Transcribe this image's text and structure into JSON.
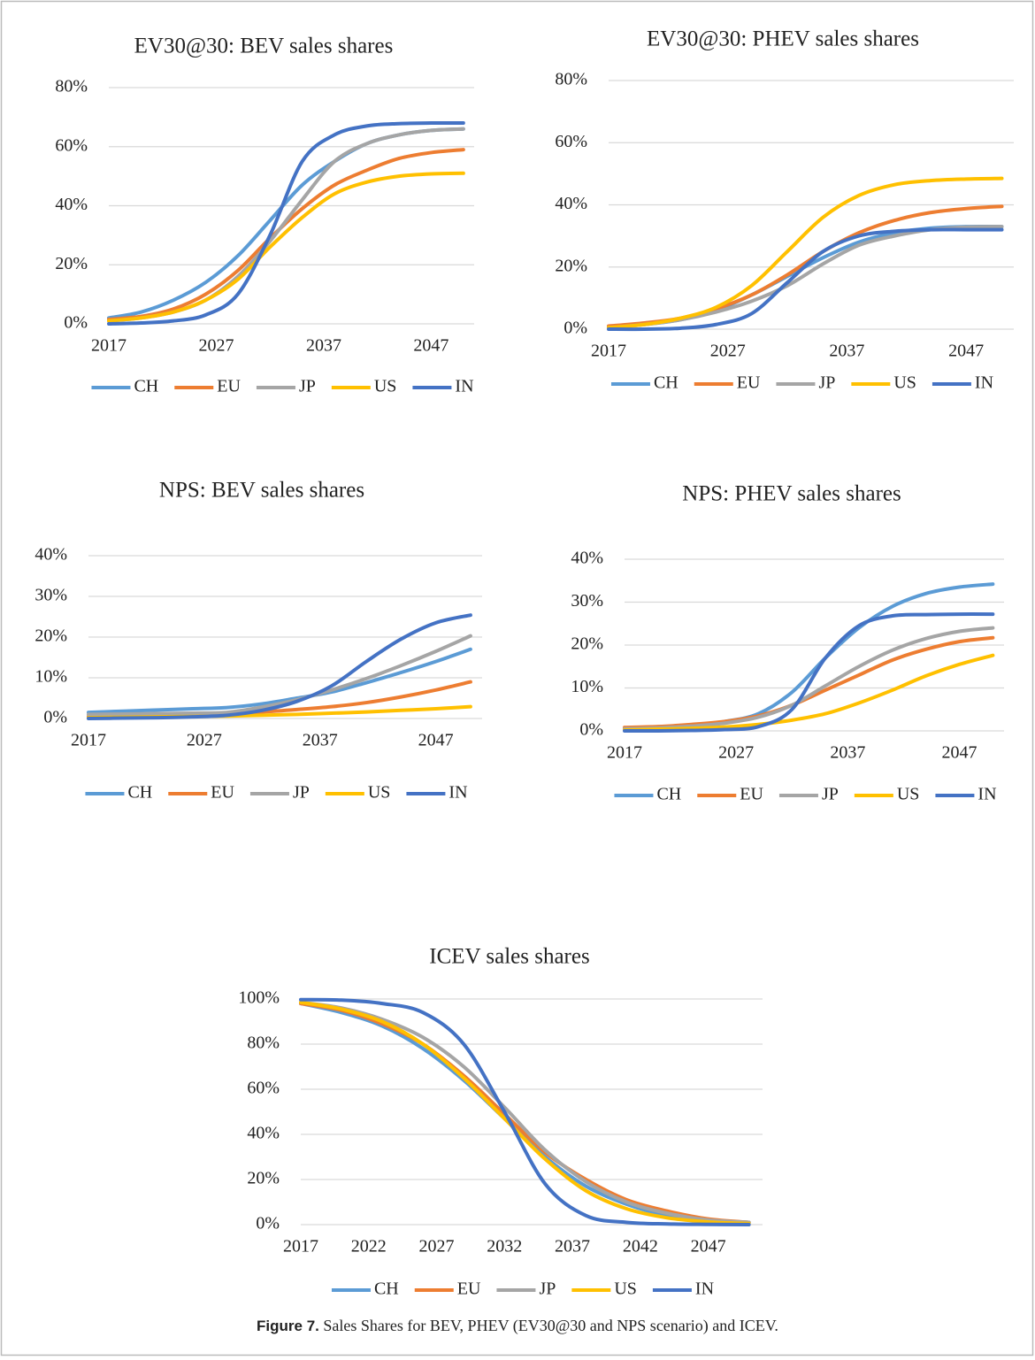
{
  "chart_data": [
    {
      "type": "line",
      "title": "EV30@30: BEV sales shares",
      "x": [
        2017,
        2020,
        2023,
        2026,
        2029,
        2032,
        2035,
        2038,
        2041,
        2044,
        2047,
        2050
      ],
      "xlim": [
        2017,
        2051
      ],
      "xticks": [
        2017,
        2027,
        2037,
        2047
      ],
      "ylim": [
        0,
        80
      ],
      "yticks": [
        {
          "value": 0,
          "label": "0%"
        },
        {
          "value": 20,
          "label": "20%"
        },
        {
          "value": 40,
          "label": "40%"
        },
        {
          "value": 60,
          "label": "60%"
        },
        {
          "value": 80,
          "label": "80%"
        }
      ],
      "grid": true,
      "legend": "bottom",
      "series": [
        {
          "name": "CH",
          "color": "#5b9bd5",
          "values": [
            2,
            4,
            8,
            14,
            23,
            35,
            47,
            55,
            61,
            64,
            65.5,
            66
          ]
        },
        {
          "name": "EU",
          "color": "#ed7d31",
          "values": [
            1.5,
            2.5,
            5,
            10,
            18,
            29,
            39,
            47,
            52,
            56,
            58,
            59
          ]
        },
        {
          "name": "JP",
          "color": "#a5a5a5",
          "values": [
            1,
            2,
            4,
            8,
            16,
            28,
            42,
            55,
            61,
            64,
            65.5,
            66
          ]
        },
        {
          "name": "US",
          "color": "#ffc000",
          "values": [
            1,
            2,
            4,
            8,
            15,
            26,
            36,
            44,
            48,
            50,
            50.8,
            51
          ]
        },
        {
          "name": "IN",
          "color": "#4472c4",
          "values": [
            0,
            0.3,
            1,
            3,
            10,
            30,
            55,
            64,
            67,
            67.8,
            68,
            68
          ]
        }
      ]
    },
    {
      "type": "line",
      "title": "EV30@30: PHEV sales shares",
      "x": [
        2017,
        2020,
        2023,
        2026,
        2029,
        2032,
        2035,
        2038,
        2041,
        2044,
        2047,
        2050
      ],
      "xlim": [
        2017,
        2051
      ],
      "xticks": [
        2017,
        2027,
        2037,
        2047
      ],
      "ylim": [
        0,
        80
      ],
      "yticks": [
        {
          "value": 0,
          "label": "0%"
        },
        {
          "value": 20,
          "label": "20%"
        },
        {
          "value": 40,
          "label": "40%"
        },
        {
          "value": 60,
          "label": "60%"
        },
        {
          "value": 80,
          "label": "80%"
        }
      ],
      "grid": true,
      "legend": "bottom",
      "series": [
        {
          "name": "CH",
          "color": "#5b9bd5",
          "values": [
            0.5,
            1.5,
            3,
            6,
            11,
            17,
            23,
            28,
            31,
            32.5,
            33,
            33
          ]
        },
        {
          "name": "EU",
          "color": "#ed7d31",
          "values": [
            1,
            2,
            3.5,
            6.5,
            11,
            17.5,
            25,
            31,
            35,
            37.5,
            38.8,
            39.5
          ]
        },
        {
          "name": "JP",
          "color": "#a5a5a5",
          "values": [
            0.5,
            1.5,
            3,
            5.5,
            9,
            14,
            21,
            27,
            30,
            32,
            32.8,
            33
          ]
        },
        {
          "name": "US",
          "color": "#ffc000",
          "values": [
            0.5,
            1.5,
            3.5,
            7,
            14,
            25,
            36,
            43,
            46.5,
            47.8,
            48.3,
            48.5
          ]
        },
        {
          "name": "IN",
          "color": "#4472c4",
          "values": [
            0,
            0,
            0.3,
            1.5,
            5,
            15,
            25,
            30,
            31.5,
            32,
            32,
            32
          ]
        }
      ]
    },
    {
      "type": "line",
      "title": "NPS: BEV sales shares",
      "x": [
        2017,
        2020,
        2023,
        2026,
        2029,
        2032,
        2035,
        2038,
        2041,
        2044,
        2047,
        2050
      ],
      "xlim": [
        2017,
        2051
      ],
      "xticks": [
        2017,
        2027,
        2037,
        2047
      ],
      "ylim": [
        0,
        40
      ],
      "yticks": [
        {
          "value": 0,
          "label": "0%"
        },
        {
          "value": 10,
          "label": "10%"
        },
        {
          "value": 20,
          "label": "20%"
        },
        {
          "value": 30,
          "label": "30%"
        },
        {
          "value": 40,
          "label": "40%"
        }
      ],
      "grid": true,
      "legend": "bottom",
      "series": [
        {
          "name": "CH",
          "color": "#5b9bd5",
          "values": [
            1.5,
            1.8,
            2.1,
            2.4,
            2.7,
            3.6,
            5,
            6.5,
            8.8,
            11.3,
            14,
            17
          ]
        },
        {
          "name": "EU",
          "color": "#ed7d31",
          "values": [
            0.5,
            0.6,
            0.8,
            1,
            1.2,
            1.6,
            2.2,
            2.9,
            3.9,
            5.3,
            7,
            9
          ]
        },
        {
          "name": "JP",
          "color": "#a5a5a5",
          "values": [
            1,
            1.1,
            1.2,
            1.3,
            1.5,
            2.8,
            4.6,
            7,
            9.8,
            13,
            16.5,
            20.3
          ]
        },
        {
          "name": "US",
          "color": "#ffc000",
          "values": [
            0.2,
            0.3,
            0.4,
            0.5,
            0.6,
            0.8,
            1,
            1.3,
            1.6,
            2,
            2.4,
            2.9
          ]
        },
        {
          "name": "IN",
          "color": "#4472c4",
          "values": [
            0,
            0.1,
            0.2,
            0.4,
            0.8,
            2,
            4.2,
            8,
            14,
            19.5,
            23.5,
            25.4
          ]
        }
      ]
    },
    {
      "type": "line",
      "title": "NPS: PHEV sales shares",
      "x": [
        2017,
        2020,
        2023,
        2026,
        2029,
        2032,
        2035,
        2038,
        2041,
        2044,
        2047,
        2050
      ],
      "xlim": [
        2017,
        2051
      ],
      "xticks": [
        2017,
        2027,
        2037,
        2047
      ],
      "ylim": [
        0,
        40
      ],
      "yticks": [
        {
          "value": 0,
          "label": "0%"
        },
        {
          "value": 10,
          "label": "10%"
        },
        {
          "value": 20,
          "label": "20%"
        },
        {
          "value": 30,
          "label": "30%"
        },
        {
          "value": 40,
          "label": "40%"
        }
      ],
      "grid": true,
      "legend": "bottom",
      "series": [
        {
          "name": "CH",
          "color": "#5b9bd5",
          "values": [
            0.5,
            0.7,
            1.2,
            2.2,
            4,
            9,
            17,
            24,
            29,
            32,
            33.5,
            34.2
          ]
        },
        {
          "name": "EU",
          "color": "#ed7d31",
          "values": [
            0.8,
            1,
            1.5,
            2.2,
            3.5,
            6,
            9.5,
            13,
            16.5,
            19,
            20.8,
            21.7
          ]
        },
        {
          "name": "JP",
          "color": "#a5a5a5",
          "values": [
            0.5,
            0.7,
            1.1,
            1.8,
            3.2,
            6,
            10.5,
            15,
            18.8,
            21.5,
            23.2,
            24
          ]
        },
        {
          "name": "US",
          "color": "#ffc000",
          "values": [
            0.2,
            0.4,
            0.6,
            0.9,
            1.5,
            2.5,
            4,
            6.5,
            9.5,
            12.8,
            15.5,
            17.6
          ]
        },
        {
          "name": "IN",
          "color": "#4472c4",
          "values": [
            0,
            0,
            0.1,
            0.3,
            1,
            5,
            17,
            24.5,
            26.8,
            27.1,
            27.2,
            27.2
          ]
        }
      ]
    },
    {
      "type": "line",
      "title": "ICEV sales shares",
      "x": [
        2017,
        2020,
        2023,
        2026,
        2029,
        2032,
        2035,
        2038,
        2041,
        2044,
        2047,
        2050
      ],
      "xlim": [
        2017,
        2051
      ],
      "xticks": [
        2017,
        2022,
        2027,
        2032,
        2037,
        2042,
        2047
      ],
      "ylim": [
        0,
        100
      ],
      "yticks": [
        {
          "value": 0,
          "label": "0%"
        },
        {
          "value": 20,
          "label": "20%"
        },
        {
          "value": 40,
          "label": "40%"
        },
        {
          "value": 60,
          "label": "60%"
        },
        {
          "value": 80,
          "label": "80%"
        },
        {
          "value": 100,
          "label": "100%"
        }
      ],
      "grid": true,
      "legend": "bottom",
      "series": [
        {
          "name": "CH",
          "color": "#5b9bd5",
          "values": [
            98,
            94,
            88,
            78,
            64,
            47,
            30,
            17,
            9,
            4,
            2,
            1
          ]
        },
        {
          "name": "EU",
          "color": "#ed7d31",
          "values": [
            98,
            95,
            89,
            80,
            66,
            49,
            32,
            20,
            11,
            6,
            2.5,
            1
          ]
        },
        {
          "name": "JP",
          "color": "#a5a5a5",
          "values": [
            98.5,
            96,
            91,
            83,
            70,
            52,
            33,
            19,
            10,
            5,
            2,
            1
          ]
        },
        {
          "name": "US",
          "color": "#ffc000",
          "values": [
            98.5,
            95.5,
            90,
            80,
            65,
            47,
            29,
            15,
            7,
            3,
            1.2,
            0.5
          ]
        },
        {
          "name": "IN",
          "color": "#4472c4",
          "values": [
            99.7,
            99.5,
            98,
            94,
            80,
            50,
            18,
            4,
            1,
            0.3,
            0.1,
            0
          ]
        }
      ]
    }
  ],
  "caption": {
    "label": "Figure 7.",
    "text": "Sales Shares for BEV, PHEV (EV30@30 and NPS scenario) and ICEV."
  }
}
